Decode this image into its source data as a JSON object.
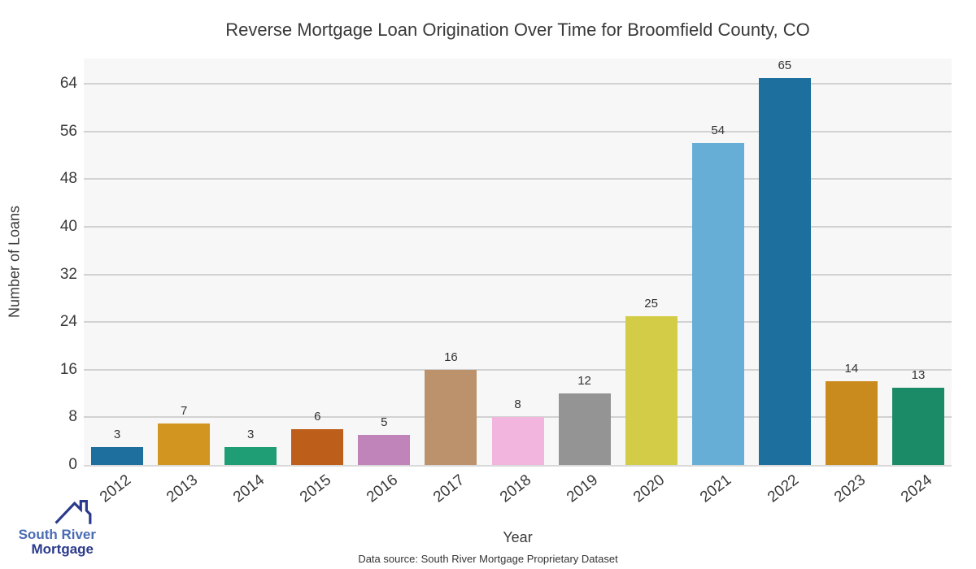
{
  "title": "Reverse Mortgage Loan Origination Over Time for Broomfield County, CO",
  "chart_data": {
    "type": "bar",
    "categories": [
      "2012",
      "2013",
      "2014",
      "2015",
      "2016",
      "2017",
      "2018",
      "2019",
      "2020",
      "2021",
      "2022",
      "2023",
      "2024"
    ],
    "values": [
      3,
      7,
      3,
      6,
      5,
      16,
      8,
      12,
      25,
      54,
      65,
      14,
      13
    ],
    "bar_colors": [
      "#1f6f9e",
      "#d29520",
      "#1f9d74",
      "#bd5e1a",
      "#c083ba",
      "#bc926c",
      "#f2b5de",
      "#949494",
      "#d3cc47",
      "#66aed6",
      "#1d6f9e",
      "#c98a1e",
      "#1b8a66"
    ],
    "title": "Reverse Mortgage Loan Origination Over Time for Broomfield County, CO",
    "xlabel": "Year",
    "ylabel": "Number of Loans",
    "yticks": [
      0,
      8,
      16,
      24,
      32,
      40,
      48,
      56,
      64
    ],
    "ylim": [
      0,
      68.2
    ],
    "grid": "horizontal-gridlines-on",
    "legend": "none",
    "plot_background": "#f7f7f7",
    "gridline_color": "#d2d2d2",
    "value_labels_shown": true
  },
  "logo": {
    "line1": "South River",
    "line2": "Mortgage",
    "color_line1": "#4a6cb3",
    "color_line2": "#2b3a8c",
    "icon": "house-roof-icon"
  },
  "footer": "Data source: South River Mortgage Proprietary Dataset"
}
